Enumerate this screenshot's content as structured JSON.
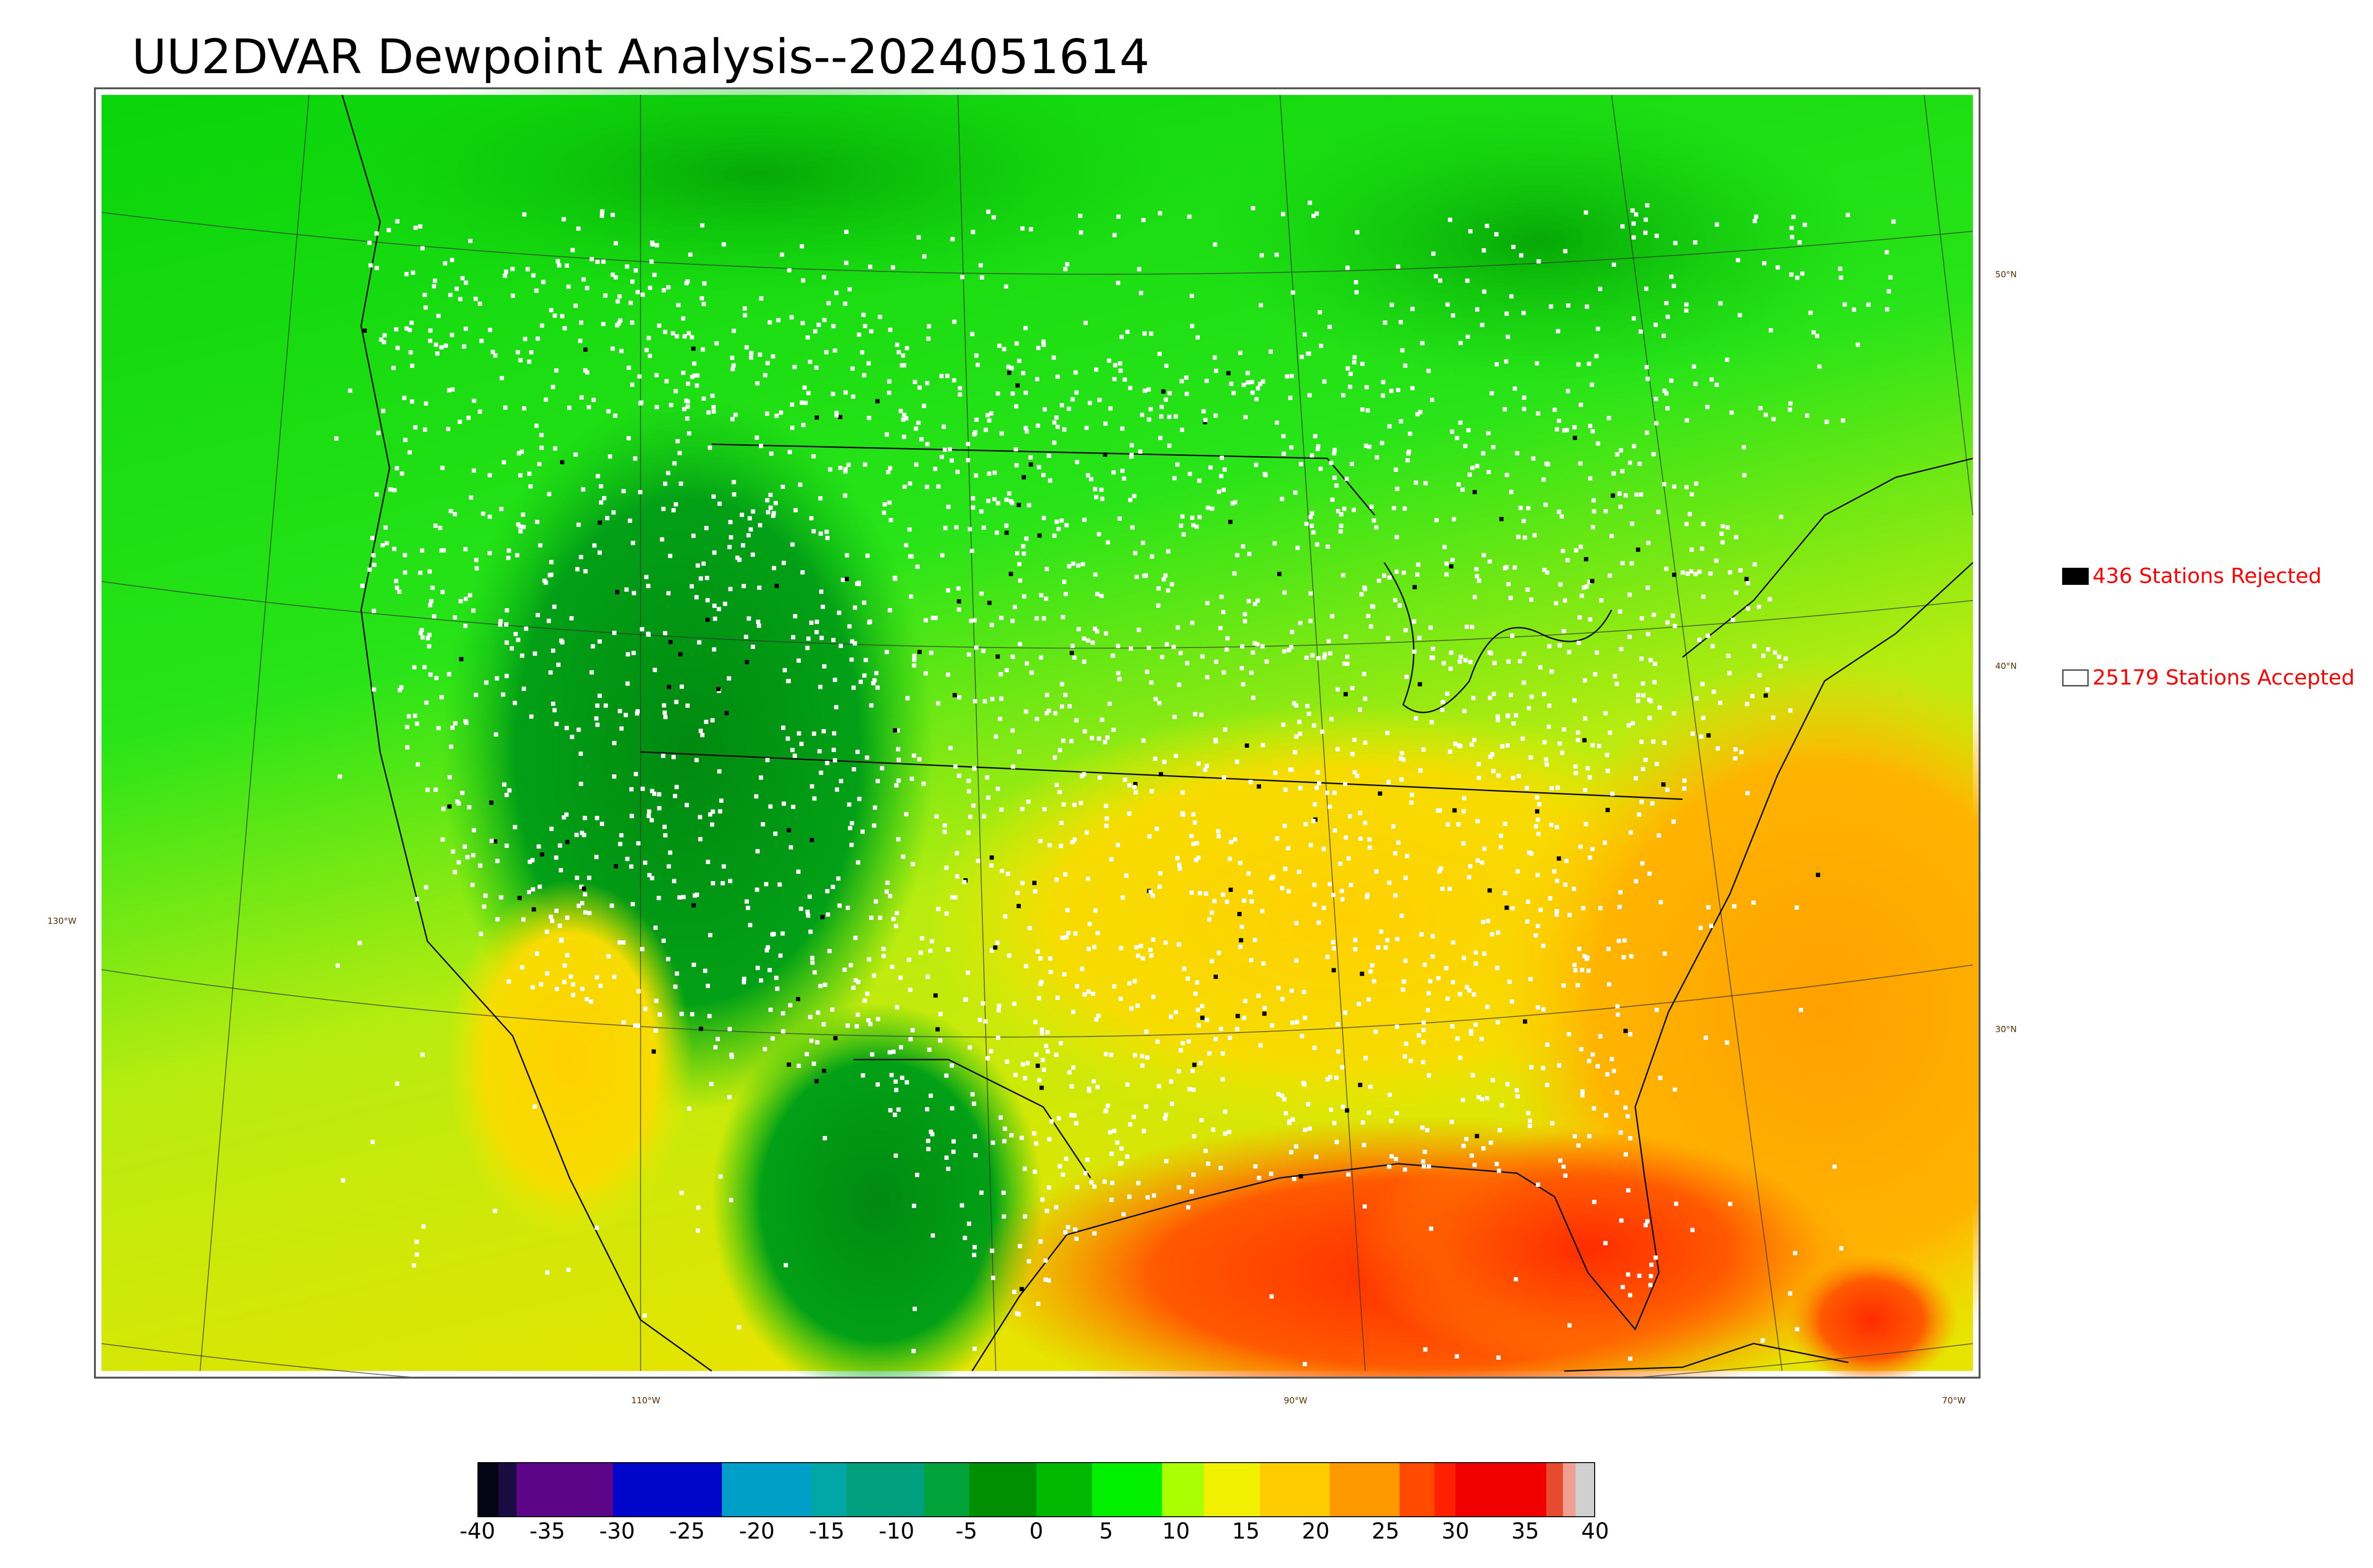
{
  "title": "UU2DVAR Dewpoint Analysis--2024051614",
  "legend": [
    {
      "swatch": "#000000",
      "label": "436 Stations Rejected"
    },
    {
      "swatch": "#ffffff",
      "label": "25179 Stations Accepted"
    }
  ],
  "lat_labels": [
    "50°N",
    "40°N",
    "30°N"
  ],
  "lon_labels": [
    "130°W",
    "110°W",
    "90°W",
    "70°W"
  ],
  "colorbar": {
    "min": -40,
    "max": 40,
    "ticks": [
      "-40",
      "-35",
      "-30",
      "-25",
      "-20",
      "-15",
      "-10",
      "-5",
      "0",
      "5",
      "10",
      "15",
      "20",
      "25",
      "30",
      "35",
      "40"
    ],
    "bands": [
      {
        "from": -40,
        "to": -38.5,
        "color": "#050515"
      },
      {
        "from": -38.5,
        "to": -37.2,
        "color": "#1a0b40"
      },
      {
        "from": -37.2,
        "to": -30.3,
        "color": "#5c0588"
      },
      {
        "from": -30.3,
        "to": -22.5,
        "color": "#0006c9"
      },
      {
        "from": -22.5,
        "to": -16.1,
        "color": "#009fc7"
      },
      {
        "from": -16.1,
        "to": -13.6,
        "color": "#00a7a6"
      },
      {
        "from": -13.6,
        "to": -8.0,
        "color": "#00a07e"
      },
      {
        "from": -8.0,
        "to": -4.8,
        "color": "#00a23a"
      },
      {
        "from": -4.8,
        "to": 0,
        "color": "#008f00"
      },
      {
        "from": 0,
        "to": 4,
        "color": "#00b800"
      },
      {
        "from": 4,
        "to": 9,
        "color": "#00f000"
      },
      {
        "from": 9,
        "to": 12,
        "color": "#aaff00"
      },
      {
        "from": 12,
        "to": 16,
        "color": "#f0f000"
      },
      {
        "from": 16,
        "to": 21,
        "color": "#ffcc00"
      },
      {
        "from": 21,
        "to": 26,
        "color": "#ff9900"
      },
      {
        "from": 26,
        "to": 28.5,
        "color": "#ff4a00"
      },
      {
        "from": 28.5,
        "to": 30,
        "color": "#ff2000"
      },
      {
        "from": 30,
        "to": 36.5,
        "color": "#f00000"
      },
      {
        "from": 36.5,
        "to": 37.7,
        "color": "#e84a30"
      },
      {
        "from": 37.7,
        "to": 38.6,
        "color": "#f0a090"
      },
      {
        "from": 38.6,
        "to": 40,
        "color": "#d0d0d0"
      }
    ]
  }
}
